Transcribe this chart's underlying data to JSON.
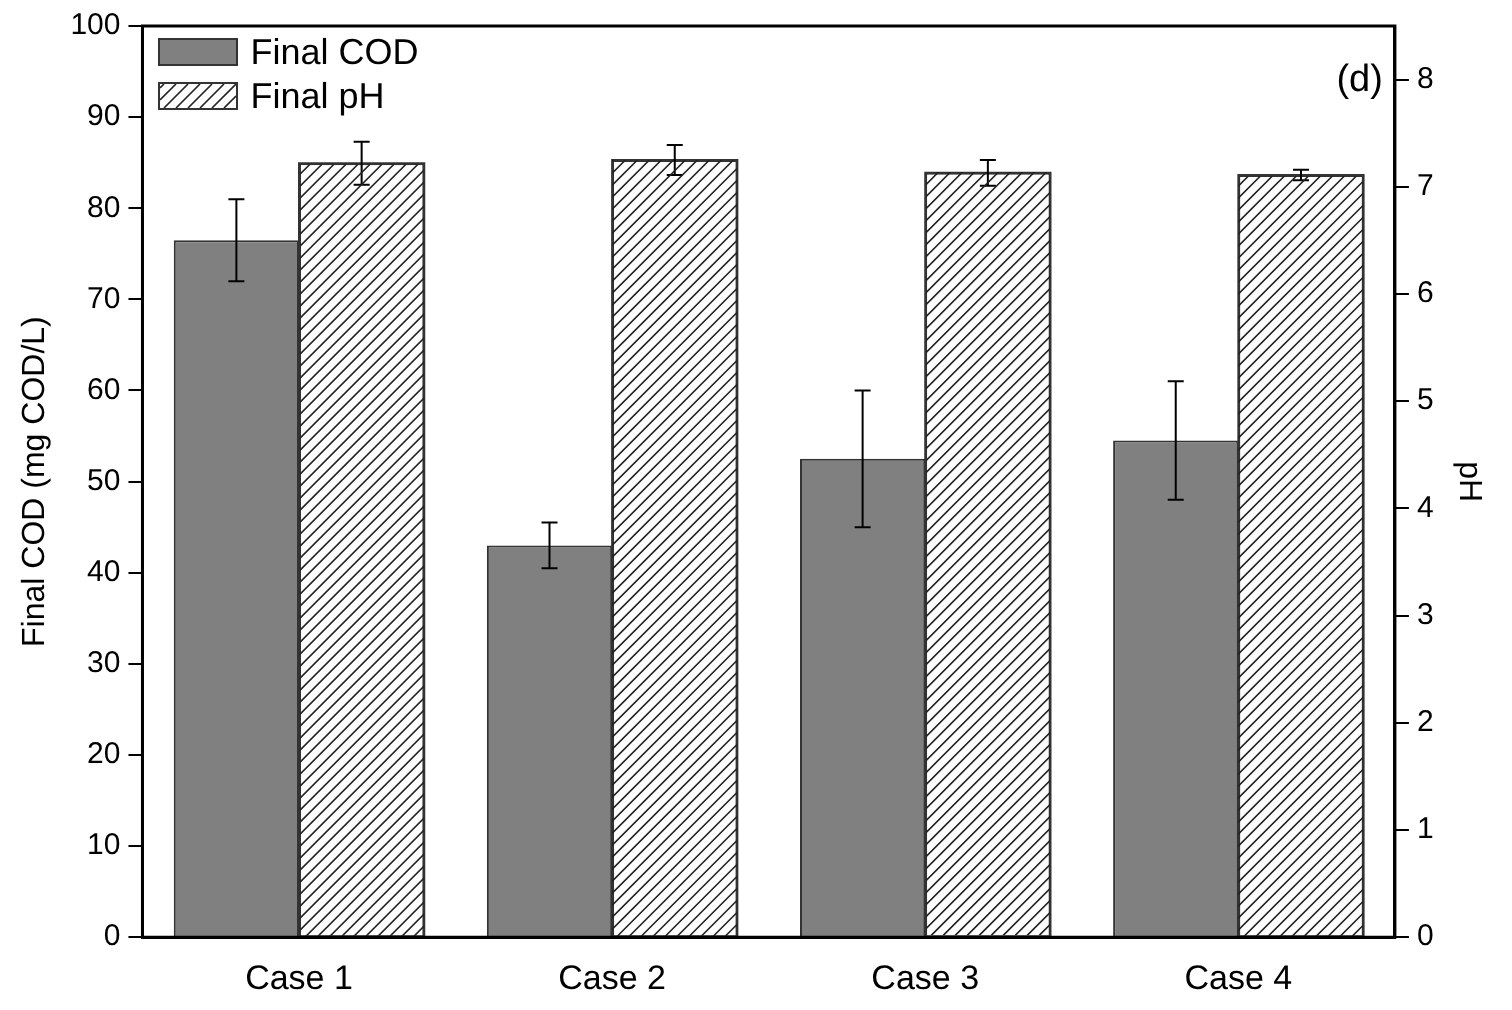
{
  "chart_data": {
    "type": "bar",
    "ylabel": "Final COD (mg COD/L)",
    "y2label": "pH",
    "categories": [
      "Case 1",
      "Case 2",
      "Case 3",
      "Case 4"
    ],
    "series": [
      {
        "name": "Final COD",
        "color": "#808080",
        "values": [
          76.5,
          43,
          52.5,
          54.5
        ],
        "errors": [
          [
            72,
            81
          ],
          [
            40.5,
            45.5
          ],
          [
            45,
            60
          ],
          [
            48,
            61
          ]
        ]
      },
      {
        "name": "Final pH",
        "color": "#ffffff",
        "axis": "y2",
        "values": [
          7.22,
          7.25,
          7.13,
          7.11
        ],
        "errors": [
          0.2,
          0.14,
          0.12,
          0.05
        ]
      }
    ],
    "ylim": [
      0,
      100
    ],
    "yticks": [
      0,
      10,
      20,
      30,
      40,
      50,
      60,
      70,
      80,
      90,
      100
    ],
    "y2lim": [
      0,
      8.5
    ],
    "y2ticks": [
      0,
      1,
      2,
      3,
      4,
      5,
      6,
      7,
      8
    ],
    "annotations": [
      "(d)"
    ],
    "legend": "top left",
    "grid": false
  }
}
